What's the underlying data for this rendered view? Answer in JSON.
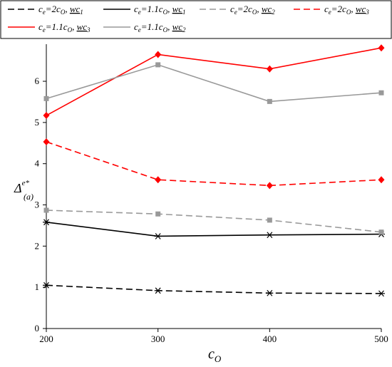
{
  "chart_data": {
    "type": "line",
    "xlabel": "c",
    "xlabel_sub": "O",
    "ylabel": "Δ",
    "ylabel_sup": "e*",
    "ylabel_sub": "(a)",
    "x": [
      200,
      300,
      400,
      500
    ],
    "x_ticks": [
      "200",
      "300",
      "400",
      "500"
    ],
    "y_ticks": [
      "0",
      "1",
      "2",
      "3",
      "4",
      "5",
      "6"
    ],
    "xlim": [
      200,
      500
    ],
    "ylim": [
      0,
      6.9
    ],
    "y_tick_values": [
      0,
      1,
      2,
      3,
      4,
      5,
      6
    ],
    "grid": false,
    "legend_position": "top",
    "series": [
      {
        "name": "ce=2co, wc1",
        "color": "#000000",
        "dash": "dashed",
        "marker": "star",
        "values": [
          1.05,
          0.92,
          0.86,
          0.85
        ]
      },
      {
        "name": "ce=1.1co, wc1",
        "color": "#000000",
        "dash": "solid",
        "marker": "star",
        "values": [
          2.58,
          2.24,
          2.27,
          2.29
        ]
      },
      {
        "name": "ce=2co, wc2",
        "color": "#999999",
        "dash": "dashed",
        "marker": "square",
        "values": [
          2.87,
          2.78,
          2.63,
          2.34
        ]
      },
      {
        "name": "ce=2co, wc3",
        "color": "#ff0000",
        "dash": "dashed",
        "marker": "diamond",
        "values": [
          4.53,
          3.61,
          3.47,
          3.61
        ]
      },
      {
        "name": "ce=1.1co, wc3",
        "color": "#ff0000",
        "dash": "solid",
        "marker": "diamond",
        "values": [
          5.17,
          6.65,
          6.3,
          6.81
        ]
      },
      {
        "name": "ce=1.1co, wc2",
        "color": "#999999",
        "dash": "solid",
        "marker": "square",
        "values": [
          5.58,
          6.4,
          5.51,
          5.72
        ]
      }
    ]
  },
  "legend": [
    {
      "c": "c",
      "csub": "e",
      "mid": "=2c",
      "msub": "O",
      "wc": "wc",
      "wcsub": "1"
    },
    {
      "c": "c",
      "csub": "e",
      "mid": "=1.1c",
      "msub": "O",
      "wc": "wc",
      "wcsub": "1"
    },
    {
      "c": "c",
      "csub": "e",
      "mid": "=2c",
      "msub": "O",
      "wc": "wc",
      "wcsub": "2"
    },
    {
      "c": "c",
      "csub": "e",
      "mid": "=2c",
      "msub": "O",
      "wc": "wc",
      "wcsub": "3"
    },
    {
      "c": "c",
      "csub": "e",
      "mid": "=1.1c",
      "msub": "O",
      "wc": "wc",
      "wcsub": "3"
    },
    {
      "c": "c",
      "csub": "e",
      "mid": "=1.1c",
      "msub": "O",
      "wc": "wc",
      "wcsub": "2"
    }
  ]
}
